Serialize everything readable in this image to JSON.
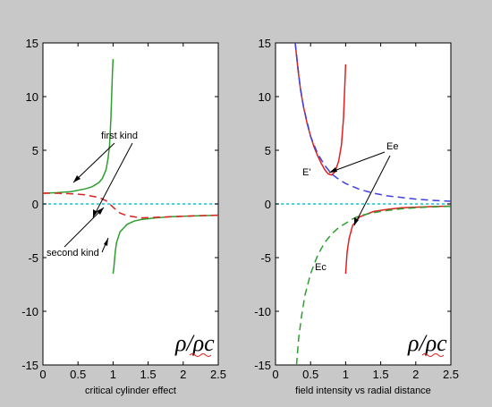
{
  "chart_data": [
    {
      "type": "line",
      "xlabel": "critical cylinder effect",
      "xlim": [
        0,
        2.5
      ],
      "ylim": [
        -15,
        15
      ],
      "xticks": [
        "0",
        "0.5",
        "1",
        "1.5",
        "2",
        "2.5"
      ],
      "yticks": [
        "15",
        "10",
        "5",
        "0",
        "-5",
        "-10",
        "-15"
      ],
      "corner_label": "ρ/ρc",
      "series": [
        {
          "id": "green",
          "color": "#2e9e2e",
          "style": "solid",
          "x": [
            0,
            0.2,
            0.4,
            0.6,
            0.7,
            0.8,
            0.85,
            0.9,
            0.93,
            0.95,
            0.97,
            0.99,
            1.0,
            1.0,
            1.0,
            1.01,
            1.03,
            1.05,
            1.1,
            1.2,
            1.3,
            1.4,
            1.6,
            1.8,
            2.0,
            2.2,
            2.5
          ],
          "y": [
            1.0,
            1.05,
            1.15,
            1.4,
            1.6,
            2.0,
            2.4,
            3.2,
            4.3,
            5.5,
            8.0,
            12.0,
            13.5,
            null,
            -6.5,
            -6.0,
            -4.5,
            -3.6,
            -2.6,
            -1.9,
            -1.6,
            -1.45,
            -1.3,
            -1.2,
            -1.15,
            -1.1,
            -1.05
          ]
        },
        {
          "id": "red-dashed",
          "color": "#e02020",
          "style": "dashed",
          "x": [
            0,
            0.2,
            0.4,
            0.6,
            0.8,
            0.9,
            0.95,
            1.0,
            1.05,
            1.1,
            1.2,
            1.3,
            1.4,
            1.6,
            1.8,
            2.0,
            2.2,
            2.5
          ],
          "y": [
            1.0,
            1.0,
            0.95,
            0.85,
            0.6,
            0.3,
            0.0,
            -0.3,
            -0.6,
            -0.85,
            -1.1,
            -1.2,
            -1.3,
            -1.25,
            -1.2,
            -1.15,
            -1.1,
            -1.05
          ]
        },
        {
          "id": "cyan-dotted",
          "color": "#2ab8c8",
          "style": "dotted",
          "x": [
            0,
            2.5
          ],
          "y": [
            0,
            0
          ]
        }
      ],
      "annotations": [
        {
          "text": "first kind"
        },
        {
          "text": "second kind"
        }
      ]
    },
    {
      "type": "line",
      "xlabel": "field intensity vs radial distance",
      "xlim": [
        0,
        2.5
      ],
      "ylim": [
        -15,
        15
      ],
      "xticks": [
        "0",
        "0.5",
        "1",
        "1.5",
        "2",
        "2.5"
      ],
      "yticks": [
        "15",
        "10",
        "5",
        "0",
        "-5",
        "-10",
        "-15"
      ],
      "corner_label": "ρ/ρc",
      "series": [
        {
          "id": "red-solid",
          "color": "#e02020",
          "style": "solid",
          "x": [
            0.28,
            0.32,
            0.36,
            0.4,
            0.45,
            0.5,
            0.55,
            0.6,
            0.65,
            0.7,
            0.75,
            0.8,
            0.85,
            0.9,
            0.94,
            0.97,
            1.0,
            1.0,
            1.0,
            1.02,
            1.05,
            1.1,
            1.2,
            1.4,
            1.6,
            1.8,
            2.0,
            2.2,
            2.5
          ],
          "y": [
            15,
            12.5,
            10.5,
            9.0,
            7.5,
            6.3,
            5.3,
            4.5,
            3.8,
            3.2,
            2.8,
            2.7,
            3.0,
            4.0,
            5.5,
            8.0,
            13.0,
            null,
            -6.5,
            -4.5,
            -3.2,
            -2.0,
            -1.2,
            -0.7,
            -0.5,
            -0.35,
            -0.3,
            -0.25,
            -0.2
          ]
        },
        {
          "id": "blue-dashed",
          "color": "#4040e0",
          "style": "dashed",
          "x": [
            0.28,
            0.35,
            0.4,
            0.5,
            0.6,
            0.7,
            0.8,
            0.9,
            1.0,
            1.2,
            1.4,
            1.6,
            1.8,
            2.0,
            2.2,
            2.5
          ],
          "y": [
            15,
            11.0,
            9.0,
            6.3,
            4.7,
            3.6,
            2.8,
            2.3,
            1.9,
            1.35,
            1.0,
            0.75,
            0.6,
            0.45,
            0.35,
            0.25
          ]
        },
        {
          "id": "green-dashed",
          "color": "#2e9e2e",
          "style": "dashed",
          "x": [
            0.3,
            0.33,
            0.37,
            0.42,
            0.5,
            0.6,
            0.7,
            0.8,
            0.9,
            1.0,
            1.1,
            1.2,
            1.4,
            1.6,
            1.8,
            2.0,
            2.2,
            2.5
          ],
          "y": [
            -15,
            -12.5,
            -10.5,
            -8.5,
            -6.5,
            -4.8,
            -3.6,
            -2.8,
            -2.2,
            -1.8,
            -1.4,
            -1.1,
            -0.8,
            -0.6,
            -0.45,
            -0.35,
            -0.28,
            -0.22
          ]
        },
        {
          "id": "cyan-dotted",
          "color": "#2ab8c8",
          "style": "dotted",
          "x": [
            0,
            2.5
          ],
          "y": [
            0,
            0
          ]
        }
      ],
      "annotations": [
        {
          "text": "Ee"
        },
        {
          "text": "E'"
        },
        {
          "text": "Ec"
        }
      ]
    }
  ]
}
